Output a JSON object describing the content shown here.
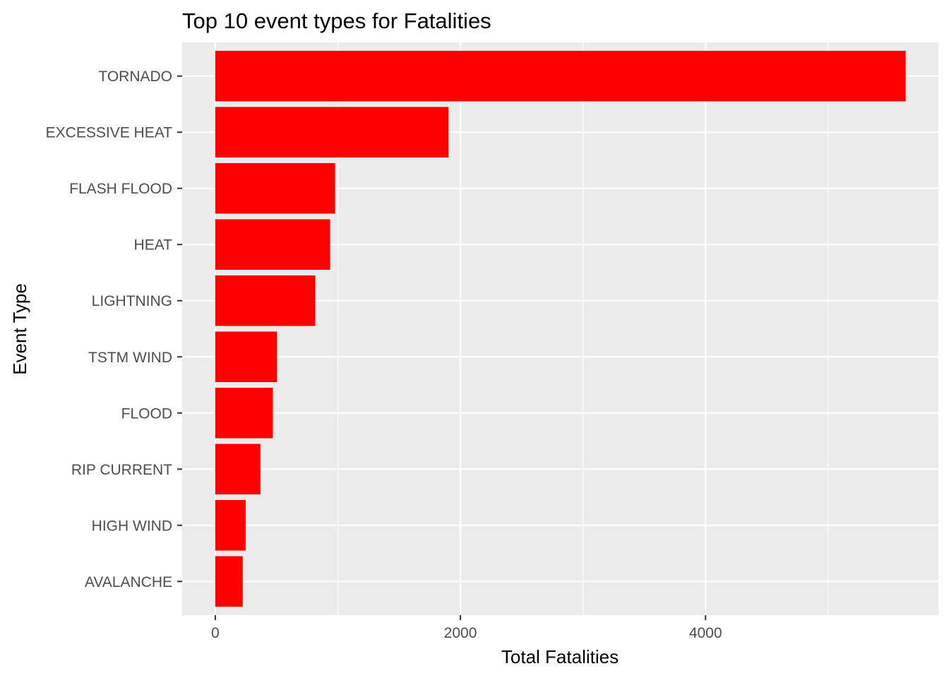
{
  "chart_data": {
    "type": "bar",
    "orientation": "horizontal",
    "title": "Top 10 event types for Fatalities",
    "xlabel": "Total Fatalities",
    "ylabel": "Event Type",
    "categories": [
      "TORNADO",
      "EXCESSIVE HEAT",
      "FLASH FLOOD",
      "HEAT",
      "LIGHTNING",
      "TSTM WIND",
      "FLOOD",
      "RIP CURRENT",
      "HIGH WIND",
      "AVALANCHE"
    ],
    "values": [
      5633,
      1903,
      978,
      937,
      816,
      504,
      470,
      368,
      248,
      224
    ],
    "xlim": [
      -270,
      5900
    ],
    "x_ticks": [
      0,
      2000,
      4000
    ],
    "x_tick_labels": [
      "0",
      "2000",
      "4000"
    ],
    "grid": true,
    "legend": "none",
    "colors": {
      "bar": "#ff0000",
      "panel": "#ebebeb",
      "grid": "#ffffff",
      "text": "#000000",
      "tick_text": "#4d4d4d"
    }
  }
}
